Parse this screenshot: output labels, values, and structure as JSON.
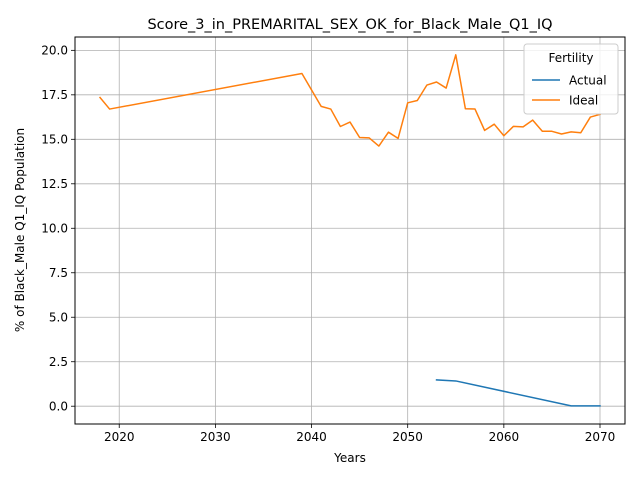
{
  "chart_data": {
    "type": "line",
    "title": "Score_3_in_PREMARITAL_SEX_OK_for_Black_Male_Q1_IQ",
    "xlabel": "Years",
    "ylabel": "% of Black_Male Q1_IQ Population",
    "xlim": [
      2015.4,
      2072.6
    ],
    "ylim": [
      -1.0,
      20.75
    ],
    "xticks": [
      2020,
      2030,
      2040,
      2050,
      2060,
      2070
    ],
    "yticks": [
      0.0,
      2.5,
      5.0,
      7.5,
      10.0,
      12.5,
      15.0,
      17.5,
      20.0
    ],
    "xtick_labels": [
      "2020",
      "2030",
      "2040",
      "2050",
      "2060",
      "2070"
    ],
    "ytick_labels": [
      "0.0",
      "2.5",
      "5.0",
      "7.5",
      "10.0",
      "12.5",
      "15.0",
      "17.5",
      "20.0"
    ],
    "grid": true,
    "legend": {
      "title": "Fertility",
      "placement": "top-right"
    },
    "series": [
      {
        "name": "Actual",
        "color": "#1f77b4",
        "x": [
          2053,
          2055,
          2067,
          2070
        ],
        "y": [
          1.48,
          1.42,
          0.02,
          0.02
        ]
      },
      {
        "name": "Ideal",
        "color": "#ff7f0e",
        "x": [
          2018,
          2019,
          2039,
          2041,
          2042,
          2043,
          2044,
          2045,
          2046,
          2047,
          2048,
          2049,
          2050,
          2051,
          2052,
          2053,
          2054,
          2055,
          2056,
          2057,
          2058,
          2059,
          2060,
          2061,
          2062,
          2063,
          2064,
          2065,
          2066,
          2067,
          2068,
          2069,
          2070
        ],
        "y": [
          17.35,
          16.7,
          18.7,
          16.85,
          16.7,
          15.72,
          15.97,
          15.1,
          15.08,
          14.62,
          15.4,
          15.05,
          17.05,
          17.18,
          18.05,
          18.22,
          17.88,
          19.75,
          16.72,
          16.7,
          15.5,
          15.85,
          15.2,
          15.73,
          15.7,
          16.08,
          15.45,
          15.45,
          15.3,
          15.42,
          15.37,
          16.25,
          16.4
        ]
      }
    ]
  }
}
